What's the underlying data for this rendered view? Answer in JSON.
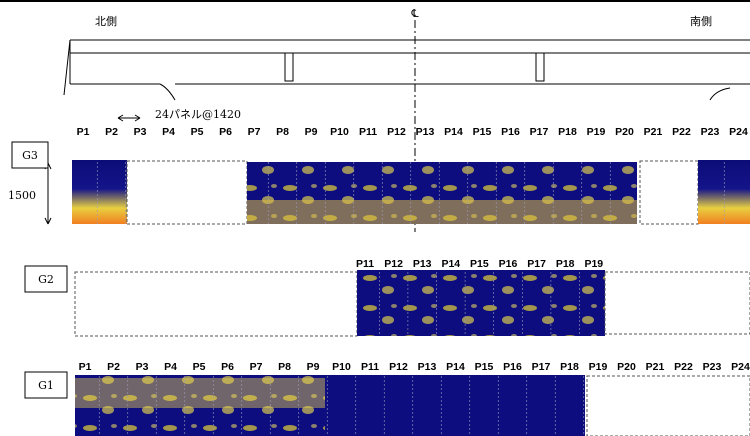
{
  "labels": {
    "north": "北側",
    "south": "南側",
    "center": "℄",
    "panel_note": "24パネル@1420",
    "height": "1500"
  },
  "girders": [
    {
      "name": "G3",
      "panels": [
        "P1",
        "P2",
        "P3",
        "P4",
        "P5",
        "P6",
        "P7",
        "P8",
        "P9",
        "P10",
        "P11",
        "P12",
        "P13",
        "P14",
        "P15",
        "P16",
        "P17",
        "P18",
        "P19",
        "P20",
        "P21",
        "P22",
        "P23",
        "P24"
      ]
    },
    {
      "name": "G2",
      "panels": [
        "P11",
        "P12",
        "P13",
        "P14",
        "P15",
        "P16",
        "P17",
        "P18",
        "P19"
      ]
    },
    {
      "name": "G1",
      "panels": [
        "P1",
        "P2",
        "P3",
        "P4",
        "P5",
        "P6",
        "P7",
        "P8",
        "P9",
        "P10",
        "P11",
        "P12",
        "P13",
        "P14",
        "P15",
        "P16",
        "P17",
        "P18",
        "P19",
        "P20",
        "P21",
        "P22",
        "P23",
        "P24"
      ]
    }
  ]
}
